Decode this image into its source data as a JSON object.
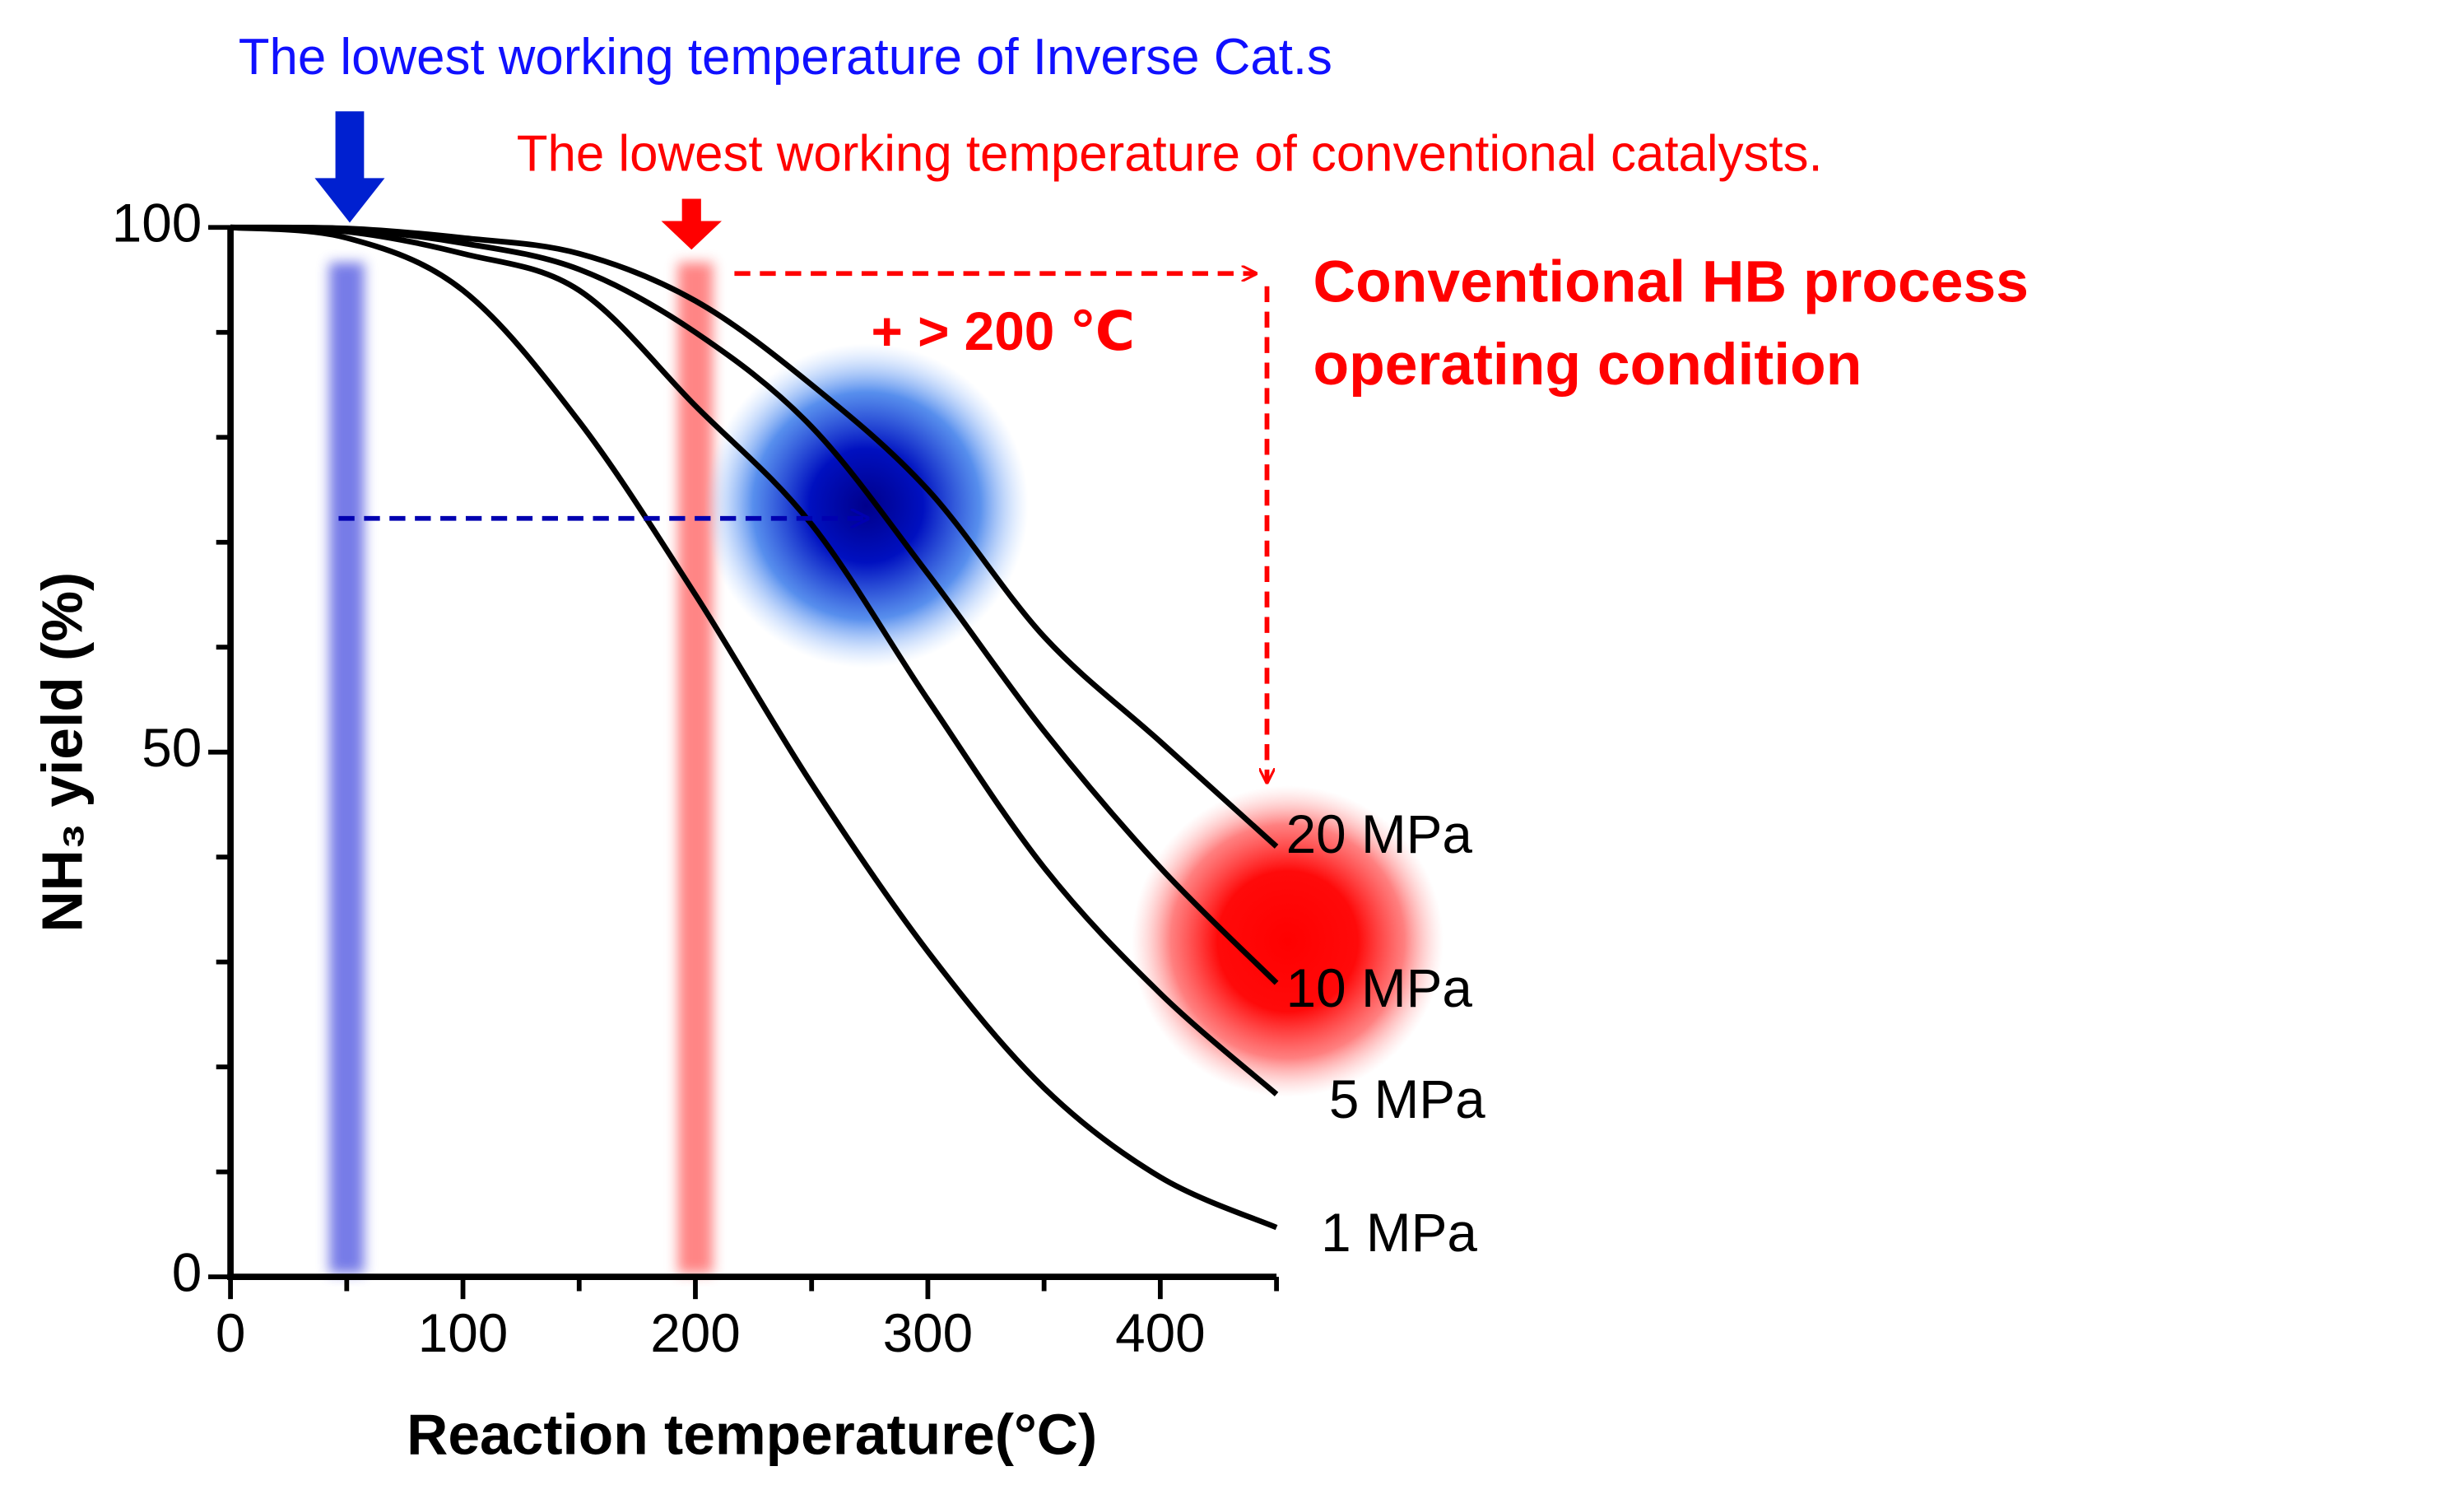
{
  "chart_data": {
    "type": "line",
    "x_label": "Reaction temperature(°C)",
    "y_label": "NH₃ yield (%)",
    "x": [
      0,
      50,
      100,
      150,
      200,
      250,
      300,
      350,
      400,
      450
    ],
    "series": [
      {
        "name": "1 MPa",
        "color": "#000000",
        "values": [
          100,
          99,
          94,
          81.5,
          65,
          47,
          31,
          18,
          9.5,
          4.7
        ]
      },
      {
        "name": "5 MPa",
        "color": "#000000",
        "values": [
          100,
          99.6,
          97.5,
          94,
          83,
          71.7,
          55,
          39,
          27,
          17.4
        ]
      },
      {
        "name": "10 MPa",
        "color": "#000000",
        "values": [
          100,
          99.8,
          98.5,
          96,
          90,
          81,
          67,
          52,
          39,
          28
        ]
      },
      {
        "name": "20 MPa",
        "color": "#000000",
        "values": [
          100,
          99.9,
          99,
          97.5,
          93,
          85,
          75,
          61,
          51,
          41
        ]
      }
    ],
    "xlim": [
      0,
      450
    ],
    "ylim": [
      0,
      100
    ],
    "xticks": [
      0,
      100,
      200,
      300,
      400
    ],
    "yticks": [
      0,
      50,
      100
    ],
    "xticks_minor": [
      50,
      150,
      250,
      350,
      450
    ],
    "yticks_minor": [
      10,
      20,
      30,
      40,
      60,
      70,
      80,
      90
    ],
    "bands": [
      {
        "x": 50,
        "color": "#6f74e6"
      },
      {
        "x": 200,
        "color": "#ff7f7f"
      }
    ],
    "annotations": {
      "inverse": "The lowest working temperature of Inverse Cat.s",
      "conventional": "The lowest working temperature of conventional catalysts.",
      "delta": "+ > 200 ℃",
      "process": [
        "Conventional HB process",
        "operating condition"
      ]
    }
  }
}
